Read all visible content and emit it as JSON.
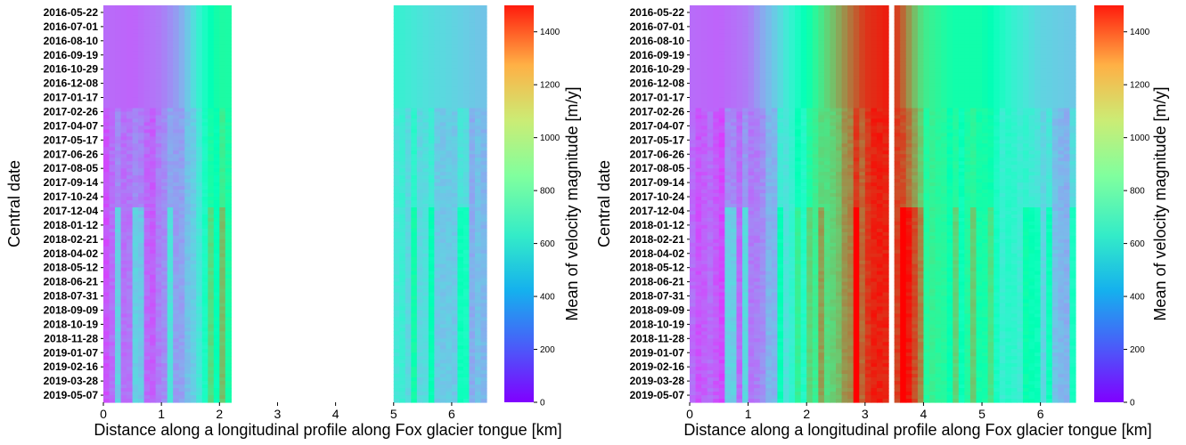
{
  "chart_data": [
    {
      "type": "heatmap",
      "panel": "left",
      "xlabel": "Distance along a longitudinal profile along Fox glacier tongue [km]",
      "ylabel": "Central date",
      "colorbar_label": "Mean of velocity magnitude [m/y]",
      "xlim": [
        0,
        6.6
      ],
      "xticks": [
        "0",
        "1",
        "2",
        "3",
        "4",
        "5",
        "6"
      ],
      "colorbar_ticks": [
        "0",
        "200",
        "400",
        "600",
        "800",
        "1000",
        "1200",
        "1400"
      ],
      "clim": [
        0,
        1500
      ],
      "colormap": "rainbow",
      "y_tick_labels": [
        "2016-05-22",
        "2016-07-01",
        "2016-08-10",
        "2016-09-19",
        "2016-10-29",
        "2016-12-08",
        "2017-01-17",
        "2017-02-26",
        "2017-04-07",
        "2017-05-17",
        "2017-06-26",
        "2017-08-05",
        "2017-09-14",
        "2017-10-24",
        "2017-12-04",
        "2018-01-12",
        "2018-02-21",
        "2018-04-02",
        "2018-05-12",
        "2018-06-21",
        "2018-07-31",
        "2018-09-09",
        "2018-10-19",
        "2018-11-28",
        "2019-01-07",
        "2019-02-16",
        "2019-03-28",
        "2019-05-07"
      ],
      "data_gap_km": [
        2.15,
        4.95
      ],
      "profile_km": [
        0,
        0.5,
        1.0,
        1.3,
        1.5,
        1.7,
        2.0,
        5.0,
        5.5,
        6.0,
        6.5
      ],
      "mean_velocity_profile": [
        210,
        190,
        240,
        330,
        460,
        640,
        840,
        600,
        520,
        470,
        420
      ]
    },
    {
      "type": "heatmap",
      "panel": "right",
      "xlabel": "Distance along a longitudinal profile along Fox glacier tongue [km]",
      "ylabel": "Central date",
      "colorbar_label": "Mean of velocity magnitude [m/y]",
      "xlim": [
        0,
        6.6
      ],
      "xticks": [
        "0",
        "1",
        "2",
        "3",
        "4",
        "5",
        "6"
      ],
      "colorbar_ticks": [
        "0",
        "200",
        "400",
        "600",
        "800",
        "1000",
        "1200",
        "1400"
      ],
      "clim": [
        0,
        1500
      ],
      "colormap": "rainbow",
      "y_tick_labels": [
        "2016-05-22",
        "2016-07-01",
        "2016-08-10",
        "2016-09-19",
        "2016-10-29",
        "2016-12-08",
        "2017-01-17",
        "2017-02-26",
        "2017-04-07",
        "2017-05-17",
        "2017-06-26",
        "2017-08-05",
        "2017-09-14",
        "2017-10-24",
        "2017-12-04",
        "2018-01-12",
        "2018-02-21",
        "2018-04-02",
        "2018-05-12",
        "2018-06-21",
        "2018-07-31",
        "2018-09-09",
        "2018-10-19",
        "2018-11-28",
        "2019-01-07",
        "2019-02-16",
        "2019-03-28",
        "2019-05-07"
      ],
      "data_gap_km": [
        3.4,
        3.5
      ],
      "profile_km": [
        0,
        0.5,
        1.0,
        1.5,
        2.0,
        2.3,
        2.7,
        3.0,
        3.4,
        3.6,
        4.0,
        4.5,
        5.0,
        5.5,
        6.0,
        6.5
      ],
      "mean_velocity_profile": [
        210,
        190,
        240,
        460,
        760,
        1000,
        1250,
        1400,
        1450,
        1350,
        950,
        800,
        800,
        600,
        470,
        430
      ]
    }
  ]
}
